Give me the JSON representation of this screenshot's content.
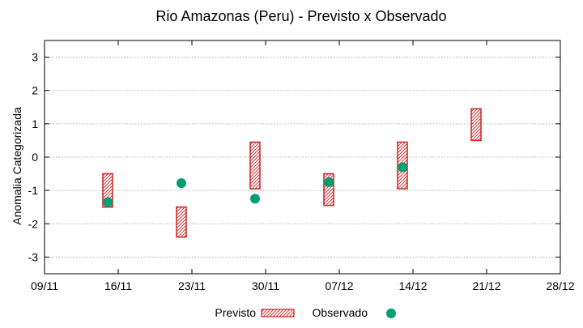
{
  "chart_data": {
    "type": "floating-bar-scatter",
    "title": "Rio Amazonas (Peru) - Previsto x Observado",
    "xlabel": "",
    "ylabel": "Anomalia Categorizada",
    "x_tick_labels": [
      "09/11",
      "16/11",
      "23/11",
      "30/11",
      "07/12",
      "14/12",
      "21/12",
      "28/12"
    ],
    "x_range_days": [
      0,
      49
    ],
    "x_ticks_days": [
      0,
      7,
      14,
      21,
      28,
      35,
      42,
      49
    ],
    "y_ticks": [
      -3,
      -2,
      -1,
      0,
      1,
      2,
      3
    ],
    "ylim": [
      -3.5,
      3.5
    ],
    "grid": true,
    "legend_position": "bottom",
    "series": [
      {
        "name": "Previsto",
        "kind": "range",
        "color": "#cc2222",
        "points": [
          {
            "day": 6,
            "low": -1.5,
            "high": -0.5
          },
          {
            "day": 13,
            "low": -2.4,
            "high": -1.5
          },
          {
            "day": 20,
            "low": -0.95,
            "high": 0.45
          },
          {
            "day": 27,
            "low": -1.45,
            "high": -0.5
          },
          {
            "day": 34,
            "low": -0.95,
            "high": 0.45
          },
          {
            "day": 41,
            "low": 0.5,
            "high": 1.45
          }
        ]
      },
      {
        "name": "Observado",
        "kind": "point",
        "color": "#009e73",
        "points": [
          {
            "day": 6,
            "value": -1.35
          },
          {
            "day": 13,
            "value": -0.78
          },
          {
            "day": 20,
            "value": -1.25
          },
          {
            "day": 27,
            "value": -0.75
          },
          {
            "day": 34,
            "value": -0.3
          }
        ]
      }
    ]
  }
}
